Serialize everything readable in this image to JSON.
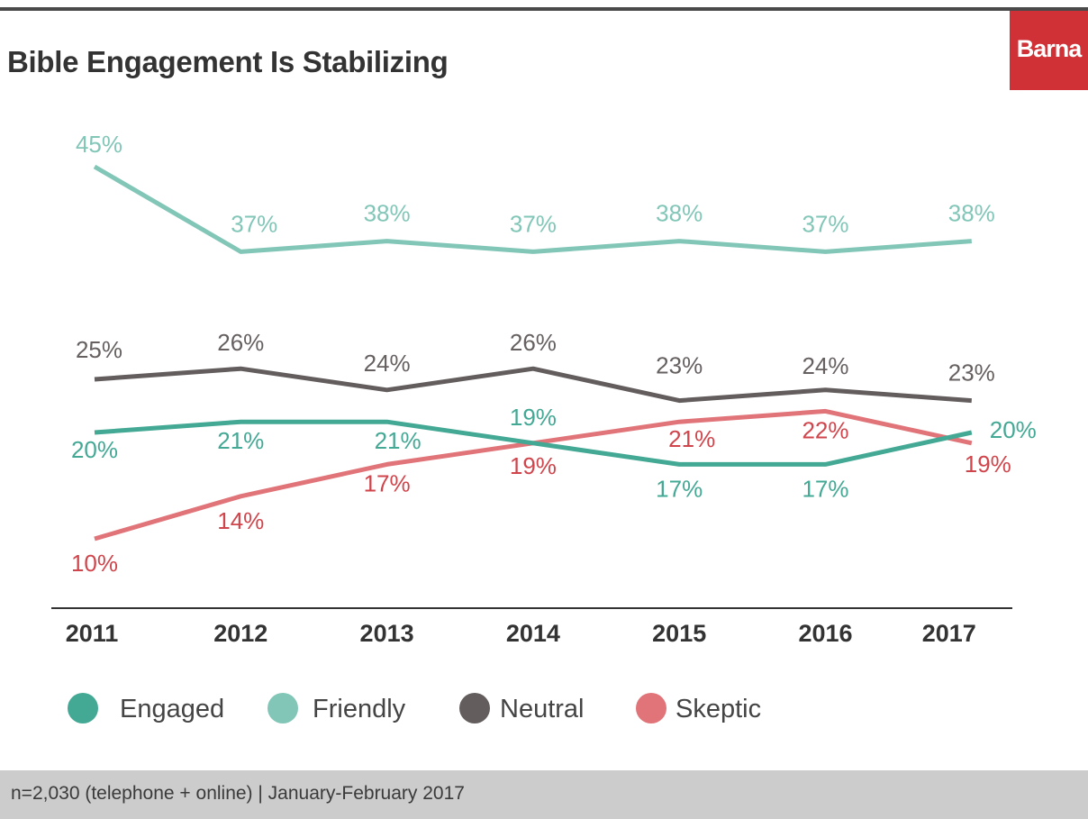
{
  "title": "Bible Engagement Is Stabilizing",
  "logo_text": "Barna",
  "footer_note": "n=2,030 (telephone + online) | January-February 2017",
  "colors": {
    "engaged": "#43a894",
    "friendly": "#82c6b8",
    "neutral": "#635d5d",
    "skeptic": "#e07479",
    "logo_bg": "#d03136"
  },
  "chart_data": {
    "type": "line",
    "x": [
      "2011",
      "2012",
      "2013",
      "2014",
      "2015",
      "2016",
      "2017"
    ],
    "ylim": [
      10,
      45
    ],
    "grid": false,
    "legend_position": "bottom",
    "series": [
      {
        "name": "Engaged",
        "values": [
          20,
          21,
          21,
          19,
          17,
          17,
          20
        ],
        "labels": [
          "20%",
          "21%",
          "21%",
          "19%",
          "17%",
          "17%",
          "20%"
        ]
      },
      {
        "name": "Friendly",
        "values": [
          45,
          37,
          38,
          37,
          38,
          37,
          38
        ],
        "labels": [
          "45%",
          "37%",
          "38%",
          "37%",
          "38%",
          "37%",
          "38%"
        ]
      },
      {
        "name": "Neutral",
        "values": [
          25,
          26,
          24,
          26,
          23,
          24,
          23
        ],
        "labels": [
          "25%",
          "26%",
          "24%",
          "26%",
          "23%",
          "24%",
          "23%"
        ]
      },
      {
        "name": "Skeptic",
        "values": [
          10,
          14,
          17,
          19,
          21,
          22,
          19
        ],
        "labels": [
          "10%",
          "14%",
          "17%",
          "19%",
          "21%",
          "22%",
          "19%"
        ]
      }
    ]
  }
}
